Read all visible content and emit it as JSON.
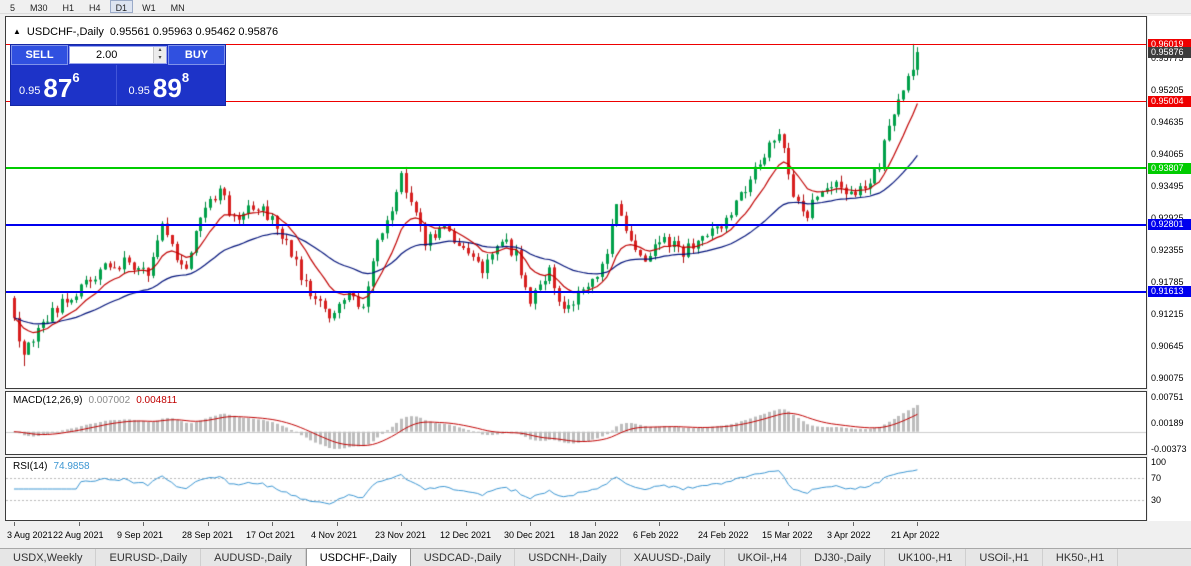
{
  "toolbar": {
    "timeframes": [
      {
        "label": "5"
      },
      {
        "label": "M30"
      },
      {
        "label": "H1"
      },
      {
        "label": "H4"
      },
      {
        "label": "D1"
      },
      {
        "label": "W1"
      },
      {
        "label": "MN"
      }
    ]
  },
  "chart": {
    "symbol_period": "USDCHF-,Daily",
    "ohlc": "0.95561 0.95963 0.95462 0.95876",
    "trade_panel": {
      "sell_label": "SELL",
      "buy_label": "BUY",
      "volume": "2.00",
      "sell_price": {
        "prefix": "0.95",
        "big": "87",
        "sup": "6"
      },
      "buy_price": {
        "prefix": "0.95",
        "big": "89",
        "sup": "8"
      }
    }
  },
  "price_scale": {
    "ticks": [
      "0.95775",
      "0.95205",
      "0.94635",
      "0.94065",
      "0.93495",
      "0.92925",
      "0.92355",
      "0.91785",
      "0.91215",
      "0.90645",
      "0.90075"
    ],
    "range_top": 0.965,
    "range_bottom": 0.899
  },
  "levels": [
    {
      "price": "0.96019",
      "value": 0.96019,
      "color": "#ee0000",
      "style": "line",
      "width": 1
    },
    {
      "price": "0.95876",
      "value": 0.95876,
      "color": "#3c3c3c",
      "style": "badge-only",
      "width": 0
    },
    {
      "price": "0.95004",
      "value": 0.95004,
      "color": "#ee0000",
      "style": "line",
      "width": 1
    },
    {
      "price": "0.93807",
      "value": 0.93807,
      "color": "#00cc00",
      "style": "line",
      "width": 2
    },
    {
      "price": "0.92801",
      "value": 0.92801,
      "color": "#0000ee",
      "style": "line",
      "width": 2
    },
    {
      "price": "0.91613",
      "value": 0.91613,
      "color": "#0000ee",
      "style": "line",
      "width": 2
    }
  ],
  "macd": {
    "label": "MACD(12,26,9)",
    "main_value": "0.007002",
    "signal_value": "0.004811",
    "scale": [
      "0.00751",
      "0.00189",
      "-0.00373"
    ]
  },
  "rsi": {
    "label": "RSI(14)",
    "value": "74.9858",
    "scale": [
      "100",
      "70",
      "30"
    ],
    "levels": [
      70,
      30
    ]
  },
  "time_axis": {
    "dates": [
      "3 Aug 2021",
      "22 Aug 2021",
      "9 Sep 2021",
      "28 Sep 2021",
      "17 Oct 2021",
      "4 Nov 2021",
      "23 Nov 2021",
      "12 Dec 2021",
      "30 Dec 2021",
      "18 Jan 2022",
      "6 Feb 2022",
      "24 Feb 2022",
      "15 Mar 2022",
      "3 Apr 2022",
      "21 Apr 2022"
    ]
  },
  "tabs": [
    {
      "label": "USDX,Weekly"
    },
    {
      "label": "EURUSD-,Daily"
    },
    {
      "label": "AUDUSD-,Daily"
    },
    {
      "label": "USDCHF-,Daily"
    },
    {
      "label": "USDCAD-,Daily"
    },
    {
      "label": "USDCNH-,Daily"
    },
    {
      "label": "XAUUSD-,Daily"
    },
    {
      "label": "UKOil-,H4"
    },
    {
      "label": "DJ30-,Daily"
    },
    {
      "label": "UK100-,H1"
    },
    {
      "label": "USOil-,H1"
    },
    {
      "label": "HK50-,H1"
    }
  ],
  "chart_data": {
    "type": "candlestick",
    "symbol": "USDCHF-",
    "timeframe": "Daily",
    "bars": 190,
    "last_bar": {
      "open": 0.95561,
      "high": 0.95963,
      "low": 0.95462,
      "close": 0.95876
    },
    "extreme_low": 0.9029,
    "anchors": [
      [
        0,
        0.9115
      ],
      [
        2,
        0.9045
      ],
      [
        6,
        0.9105
      ],
      [
        10,
        0.914
      ],
      [
        14,
        0.917
      ],
      [
        19,
        0.9205
      ],
      [
        24,
        0.9215
      ],
      [
        28,
        0.9195
      ],
      [
        31,
        0.929
      ],
      [
        33,
        0.924
      ],
      [
        36,
        0.9205
      ],
      [
        40,
        0.932
      ],
      [
        43,
        0.934
      ],
      [
        46,
        0.929
      ],
      [
        50,
        0.931
      ],
      [
        54,
        0.9295
      ],
      [
        58,
        0.923
      ],
      [
        62,
        0.915
      ],
      [
        66,
        0.912
      ],
      [
        70,
        0.9155
      ],
      [
        73,
        0.9125
      ],
      [
        76,
        0.925
      ],
      [
        79,
        0.931
      ],
      [
        81,
        0.9365
      ],
      [
        83,
        0.933
      ],
      [
        86,
        0.925
      ],
      [
        90,
        0.927
      ],
      [
        94,
        0.924
      ],
      [
        98,
        0.9195
      ],
      [
        102,
        0.925
      ],
      [
        105,
        0.923
      ],
      [
        108,
        0.914
      ],
      [
        112,
        0.9195
      ],
      [
        115,
        0.912
      ],
      [
        118,
        0.9155
      ],
      [
        121,
        0.918
      ],
      [
        124,
        0.923
      ],
      [
        126,
        0.932
      ],
      [
        129,
        0.925
      ],
      [
        132,
        0.9225
      ],
      [
        136,
        0.9255
      ],
      [
        140,
        0.923
      ],
      [
        144,
        0.9265
      ],
      [
        148,
        0.9275
      ],
      [
        152,
        0.933
      ],
      [
        156,
        0.939
      ],
      [
        160,
        0.9445
      ],
      [
        163,
        0.934
      ],
      [
        166,
        0.93
      ],
      [
        169,
        0.9345
      ],
      [
        172,
        0.9365
      ],
      [
        175,
        0.933
      ],
      [
        178,
        0.935
      ],
      [
        181,
        0.939
      ],
      [
        184,
        0.948
      ],
      [
        186,
        0.952
      ],
      [
        188,
        0.956
      ],
      [
        189,
        0.95876
      ]
    ],
    "indicators": [
      {
        "name": "MA fast",
        "color": "#c00000"
      },
      {
        "name": "MA slow",
        "color": "#00127a"
      },
      {
        "name": "MACD(12,26,9)",
        "values": [
          0.007002,
          0.004811
        ]
      },
      {
        "name": "RSI(14)",
        "value": 74.9858
      }
    ]
  }
}
